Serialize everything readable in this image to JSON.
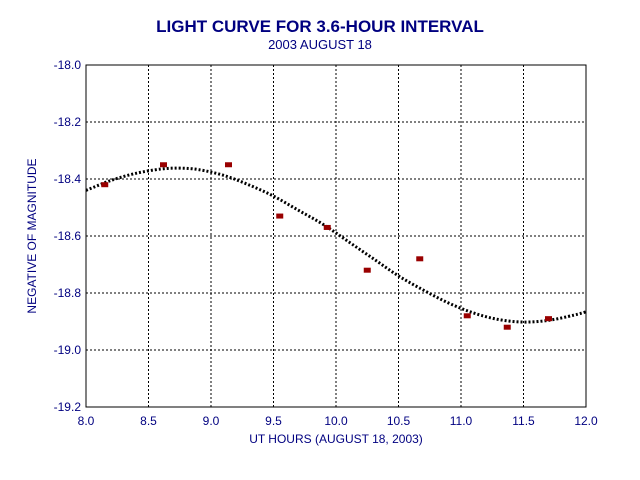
{
  "chart_data": {
    "type": "scatter",
    "title": "LIGHT CURVE FOR 3.6-HOUR INTERVAL",
    "subtitle": "2003 AUGUST 18",
    "xlabel": "UT HOURS (AUGUST 18, 2003)",
    "ylabel": "NEGATIVE OF MAGNITUDE",
    "xlim": [
      8.0,
      12.0
    ],
    "ylim": [
      -19.2,
      -18.0
    ],
    "x_ticks": [
      8.0,
      8.5,
      9.0,
      9.5,
      10.0,
      10.5,
      11.0,
      11.5,
      12.0
    ],
    "y_ticks": [
      -18.0,
      -18.2,
      -18.4,
      -18.6,
      -18.8,
      -19.0,
      -19.2
    ],
    "x_tick_labels": [
      "8.0",
      "8.5",
      "9.0",
      "9.5",
      "10.0",
      "10.5",
      "11.0",
      "11.5",
      "12.0"
    ],
    "y_tick_labels": [
      "-18.0",
      "-18.2",
      "-18.4",
      "-18.6",
      "-18.8",
      "-19.0",
      "-19.2"
    ],
    "grid": true,
    "colors": {
      "text": "#000080",
      "points": "#990000",
      "fit_line": "#000000",
      "grid": "#000000"
    },
    "series": [
      {
        "kind": "points",
        "x": [
          8.15,
          8.62,
          9.14,
          9.55,
          9.93,
          10.25,
          10.67,
          11.05,
          11.37,
          11.7
        ],
        "y": [
          -18.42,
          -18.35,
          -18.35,
          -18.53,
          -18.57,
          -18.72,
          -18.68,
          -18.88,
          -18.92,
          -18.89
        ]
      },
      {
        "kind": "fit_curve",
        "x": [
          8.0,
          8.2,
          8.4,
          8.6,
          8.75,
          8.9,
          9.1,
          9.3,
          9.5,
          9.7,
          9.9,
          10.1,
          10.3,
          10.5,
          10.7,
          10.9,
          11.1,
          11.3,
          11.5,
          11.7,
          11.9,
          12.0
        ],
        "y": [
          -18.44,
          -18.405,
          -18.38,
          -18.365,
          -18.362,
          -18.367,
          -18.387,
          -18.42,
          -18.46,
          -18.51,
          -18.56,
          -18.62,
          -18.68,
          -18.74,
          -18.79,
          -18.835,
          -18.87,
          -18.893,
          -18.902,
          -18.896,
          -18.878,
          -18.866
        ]
      }
    ]
  }
}
